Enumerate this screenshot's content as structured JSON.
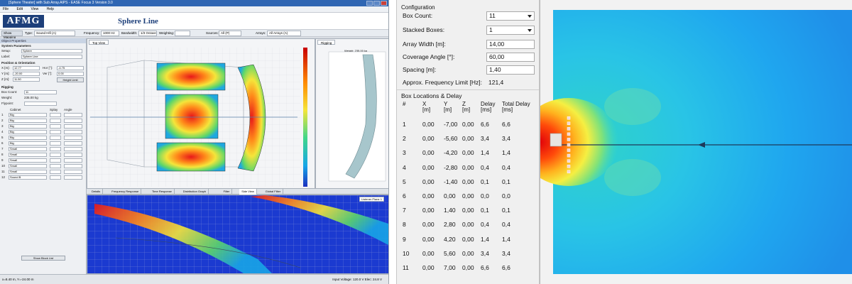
{
  "app": {
    "title": "[Sphere Theater] with Sub Array.AIPS - EASE Focus 3 Version 3.0",
    "menu": [
      "File",
      "Edit",
      "View",
      "Help"
    ],
    "logo": "AFMG",
    "view_title": "Sphere Line",
    "toolbar": {
      "button": "Show Mapping",
      "type_label": "Type:",
      "type_value": "Sound Hifi (A)",
      "freq_label": "Frequency:",
      "freq_value": "1000 Hz",
      "bandwidth_label": "Bandwidth:",
      "bandwidth_value": "1/3 Octave",
      "weighting_label": "Weighting:",
      "source_label": "Sources:",
      "source_value": "All (P)",
      "arrays_label": "Arrays:",
      "arrays_value": "All Arrays (A)"
    },
    "sidebar": {
      "header": "Object Properties",
      "section": "System Parameters",
      "setup_label": "Setup:",
      "setup_value": "Sphere",
      "label_label": "Label:",
      "label_value": "Sphere Line",
      "position_header": "Position & Orientation",
      "pos": [
        {
          "label": "X [m]:",
          "value": "12.77",
          "label2": "Hor [°]:",
          "value2": "-4.75"
        },
        {
          "label": "Y [m]:",
          "value": "-20.00",
          "label2": "Ver [°]:",
          "value2": "0.00"
        },
        {
          "label": "Z [m]:",
          "value": "11.50",
          "label2": "",
          "value2": "Height Limit"
        }
      ],
      "rigging_header": "Rigging",
      "box_count_label": "Box Count:",
      "box_count_value": "11",
      "weight_label": "Weight:",
      "weight_value": "235.00 kg",
      "flypoint_label": "Flypoint:",
      "cabinet_header": "Cabinet",
      "splay_header": "Splay",
      "angle_header": "Angle",
      "rows": [
        "Big",
        "Big",
        "Big",
        "Big",
        "Big",
        "Big",
        "Small",
        "Small",
        "Small",
        "Small",
        "Small",
        "Sound B"
      ],
      "bottom_button": "Show Block List",
      "tabs": [
        "Project Properties",
        "Object Properties"
      ]
    },
    "panes": {
      "top_view": "Top View",
      "rigging": "Rigging",
      "rigging_weight": "Weight: 235.00 kg",
      "bottom_tabs": [
        "Details",
        "Frequency Response",
        "Time Response",
        "Distribution Graph",
        "Filter",
        "Side View",
        "Global Filter"
      ],
      "side_label": "Listener Plane 1"
    },
    "status": "x=8.40 m, Y=-24.00 m",
    "status_right": "Input Voltage: 120.0 V  Elec: 24.8 V"
  },
  "config": {
    "legend": "Configuration",
    "box_count_label": "Box Count:",
    "box_count_value": "11",
    "stacked_label": "Stacked Boxes:",
    "stacked_value": "1",
    "array_width_label": "Array Width [m]:",
    "array_width_value": "14,00",
    "coverage_label": "Coverage Angle [°]:",
    "coverage_value": "60,00",
    "spacing_label": "Spacing [m]:",
    "spacing_value": "1,40",
    "freq_label": "Approx. Frequency Limit [Hz]:",
    "freq_value": "121,4",
    "box_locations_title": "Box Locations & Delay",
    "columns": [
      {
        "name": "#",
        "unit": ""
      },
      {
        "name": "X",
        "unit": "[m]"
      },
      {
        "name": "Y",
        "unit": "[m]"
      },
      {
        "name": "Z",
        "unit": "[m]"
      },
      {
        "name": "Delay",
        "unit": "[ms]"
      },
      {
        "name": "Total Delay",
        "unit": "[ms]"
      }
    ],
    "rows": [
      [
        "1",
        "0,00",
        "-7,00",
        "0,00",
        "6,6",
        "6,6"
      ],
      [
        "2",
        "0,00",
        "-5,60",
        "0,00",
        "3,4",
        "3,4"
      ],
      [
        "3",
        "0,00",
        "-4,20",
        "0,00",
        "1,4",
        "1,4"
      ],
      [
        "4",
        "0,00",
        "-2,80",
        "0,00",
        "0,4",
        "0,4"
      ],
      [
        "5",
        "0,00",
        "-1,40",
        "0,00",
        "0,1",
        "0,1"
      ],
      [
        "6",
        "0,00",
        "0,00",
        "0,00",
        "0,0",
        "0,0"
      ],
      [
        "7",
        "0,00",
        "1,40",
        "0,00",
        "0,1",
        "0,1"
      ],
      [
        "8",
        "0,00",
        "2,80",
        "0,00",
        "0,4",
        "0,4"
      ],
      [
        "9",
        "0,00",
        "4,20",
        "0,00",
        "1,4",
        "1,4"
      ],
      [
        "10",
        "0,00",
        "5,60",
        "0,00",
        "3,4",
        "3,4"
      ],
      [
        "11",
        "0,00",
        "7,00",
        "0,00",
        "6,6",
        "6,6"
      ]
    ]
  }
}
